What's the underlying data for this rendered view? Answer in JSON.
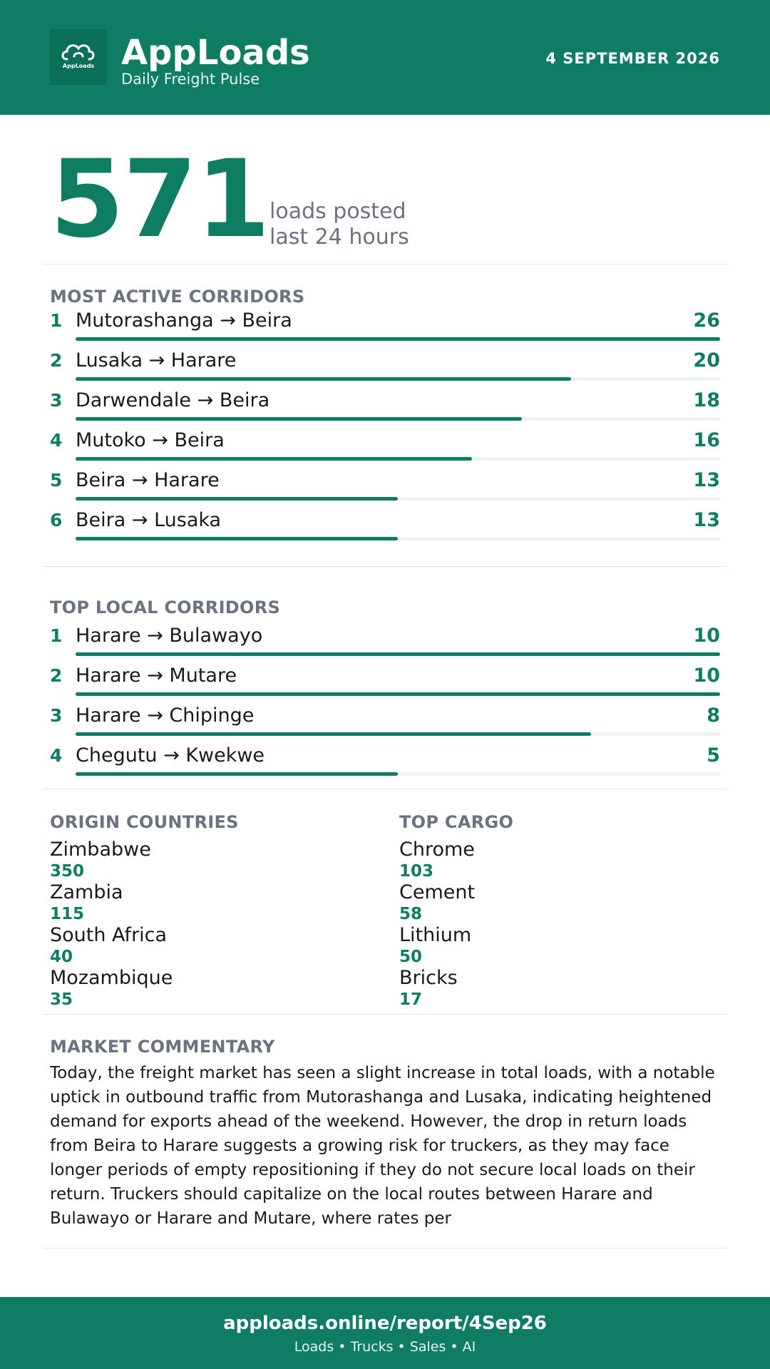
{
  "header": {
    "logo_text_1": "App",
    "logo_text_2": "Loads",
    "logo_icon": "cloud-icon",
    "app_name": "AppLoads",
    "subtitle": "Daily Freight Pulse",
    "date": "4 SEPTEMBER 2026"
  },
  "headline": {
    "value": "571",
    "label_line1": "loads posted",
    "label_line2": "last 24 hours"
  },
  "active_corridors": {
    "title": "MOST ACTIVE CORRIDORS",
    "max": 26,
    "items": [
      {
        "rank": "1",
        "route": "Mutorashanga → Beira",
        "count": 26
      },
      {
        "rank": "2",
        "route": "Lusaka → Harare",
        "count": 20
      },
      {
        "rank": "3",
        "route": "Darwendale → Beira",
        "count": 18
      },
      {
        "rank": "4",
        "route": "Mutoko → Beira",
        "count": 16
      },
      {
        "rank": "5",
        "route": "Beira → Harare",
        "count": 13
      },
      {
        "rank": "6",
        "route": "Beira → Lusaka",
        "count": 13
      }
    ]
  },
  "local_corridors": {
    "title": "TOP LOCAL CORRIDORS",
    "max": 10,
    "items": [
      {
        "rank": "1",
        "route": "Harare → Bulawayo",
        "count": 10
      },
      {
        "rank": "2",
        "route": "Harare → Mutare",
        "count": 10
      },
      {
        "rank": "3",
        "route": "Harare → Chipinge",
        "count": 8
      },
      {
        "rank": "4",
        "route": "Chegutu → Kwekwe",
        "count": 5
      }
    ]
  },
  "origin_countries": {
    "title": "ORIGIN COUNTRIES",
    "items": [
      {
        "name": "Zimbabwe",
        "value": "350"
      },
      {
        "name": "Zambia",
        "value": "115"
      },
      {
        "name": "South Africa",
        "value": "40"
      },
      {
        "name": "Mozambique",
        "value": "35"
      }
    ]
  },
  "top_cargo": {
    "title": "TOP CARGO",
    "items": [
      {
        "name": "Chrome",
        "value": "103"
      },
      {
        "name": "Cement",
        "value": "58"
      },
      {
        "name": "Lithium",
        "value": "50"
      },
      {
        "name": "Bricks",
        "value": "17"
      }
    ]
  },
  "commentary": {
    "title": "MARKET COMMENTARY",
    "text": "Today, the freight market has seen a slight increase in total loads, with a notable uptick in outbound traffic from Mutorashanga and Lusaka, indicating heightened demand for exports ahead of the weekend. However, the drop in return loads from Beira to Harare suggests a growing risk for truckers, as they may face longer periods of empty repositioning if they do not secure local loads on their return. Truckers should capitalize on the local routes between Harare and Bulawayo or Harare and Mutare, where rates per"
  },
  "footer": {
    "url": "apploads.online/report/4Sep26",
    "tagline": "Loads • Trucks • Sales • AI"
  },
  "colors": {
    "brand": "#0f7d63",
    "muted": "#6b7280",
    "track": "#f0f1f3"
  }
}
